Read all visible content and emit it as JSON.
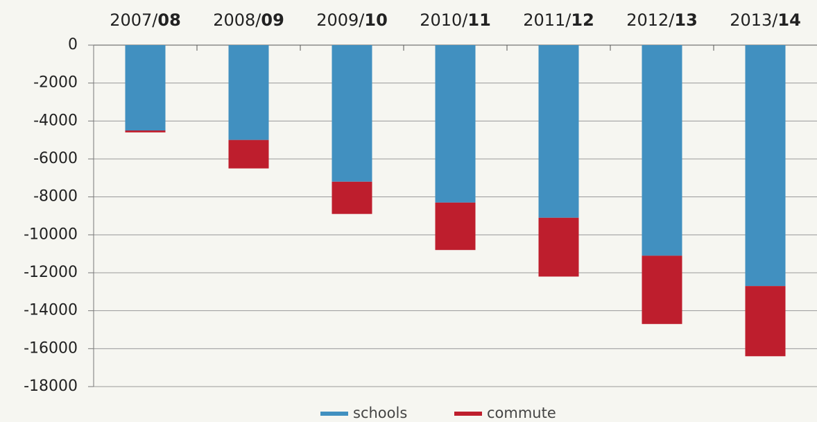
{
  "chart_data": {
    "type": "stacked-bar",
    "categories": [
      "2007/08",
      "2008/09",
      "2009/10",
      "2010/11",
      "2011/12",
      "2012/13",
      "2013/14"
    ],
    "series": [
      {
        "name": "schools",
        "color": "#4190c0",
        "values": [
          -4500,
          -5000,
          -7200,
          -8300,
          -9100,
          -11100,
          -12700
        ]
      },
      {
        "name": "commute",
        "color": "#be1e2d",
        "values": [
          -100,
          -1500,
          -1700,
          -2500,
          -3100,
          -3600,
          -3700
        ]
      }
    ],
    "ylim": [
      -18000,
      0
    ],
    "yticks": [
      0,
      -2000,
      -4000,
      -6000,
      -8000,
      -10000,
      -12000,
      -14000,
      -16000,
      -18000
    ],
    "grid": true,
    "legend": "bottom"
  }
}
